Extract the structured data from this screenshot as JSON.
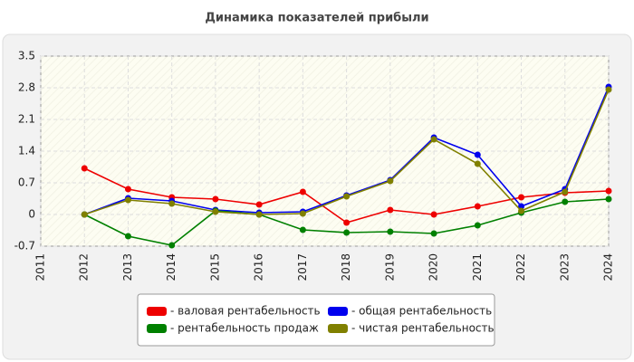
{
  "chart_data": {
    "type": "line",
    "title": "Динамика показателей прибыли",
    "x": [
      2011,
      2012,
      2013,
      2014,
      2015,
      2016,
      2017,
      2018,
      2019,
      2020,
      2021,
      2022,
      2023,
      2024
    ],
    "xlim": [
      2011,
      2024
    ],
    "xticks": [
      2011,
      2012,
      2013,
      2014,
      2015,
      2016,
      2017,
      2018,
      2019,
      2020,
      2021,
      2022,
      2023,
      2024
    ],
    "ylim": [
      -0.7,
      3.5
    ],
    "yticks": [
      -0.7,
      0,
      0.7,
      1.4,
      2.1,
      2.8,
      3.5
    ],
    "grid": true,
    "legend": "bottom",
    "series": [
      {
        "name": "- валовая рентабельность",
        "color": "#ee0000",
        "values": [
          null,
          1.02,
          0.56,
          0.38,
          0.34,
          0.22,
          0.5,
          -0.18,
          0.1,
          0.0,
          0.18,
          0.38,
          0.48,
          0.52
        ]
      },
      {
        "name": "- общая рентабельность",
        "color": "#0000ee",
        "values": [
          null,
          0,
          0.36,
          0.3,
          0.1,
          0.04,
          0.06,
          0.42,
          0.76,
          1.7,
          1.32,
          0.18,
          0.56,
          2.82
        ]
      },
      {
        "name": "- рентабельность продаж",
        "color": "#008000",
        "values": [
          null,
          0,
          -0.48,
          -0.68,
          0.08,
          0.0,
          -0.34,
          -0.4,
          -0.38,
          -0.42,
          -0.24,
          0.04,
          0.28,
          0.34
        ]
      },
      {
        "name": "- чистая рентабельность",
        "color": "#808000",
        "values": [
          null,
          0,
          0.32,
          0.24,
          0.06,
          0.0,
          0.02,
          0.4,
          0.74,
          1.66,
          1.12,
          0.08,
          0.5,
          2.76
        ]
      }
    ]
  }
}
